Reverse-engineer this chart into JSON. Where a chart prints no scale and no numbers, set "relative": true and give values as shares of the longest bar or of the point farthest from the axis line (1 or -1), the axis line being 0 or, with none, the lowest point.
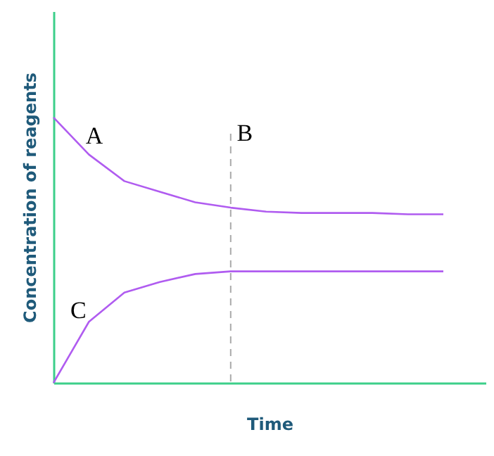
{
  "chart_data": {
    "type": "line",
    "relative": true,
    "xlabel": "Time",
    "ylabel": "Concentration of reagents",
    "categories": [
      null,
      null,
      null,
      null,
      null,
      null,
      null,
      null,
      null,
      null,
      null,
      null
    ],
    "tick_labels": false,
    "grid": false,
    "marker": "none",
    "line_style": "solid",
    "series": [
      {
        "color": "#b05cf0",
        "values": [
          1,
          0.86,
          0.76,
          0.72,
          0.68,
          0.66,
          0.645,
          0.64,
          0.64,
          0.64,
          0.635,
          0.635
        ]
      },
      {
        "color": "#b05cf0",
        "values": [
          0,
          0.23,
          0.34,
          0.38,
          0.41,
          0.42,
          0.42,
          0.42,
          0.42,
          0.42,
          0.42,
          0.42
        ]
      }
    ],
    "annotations": [
      "A",
      "B",
      "C"
    ]
  }
}
